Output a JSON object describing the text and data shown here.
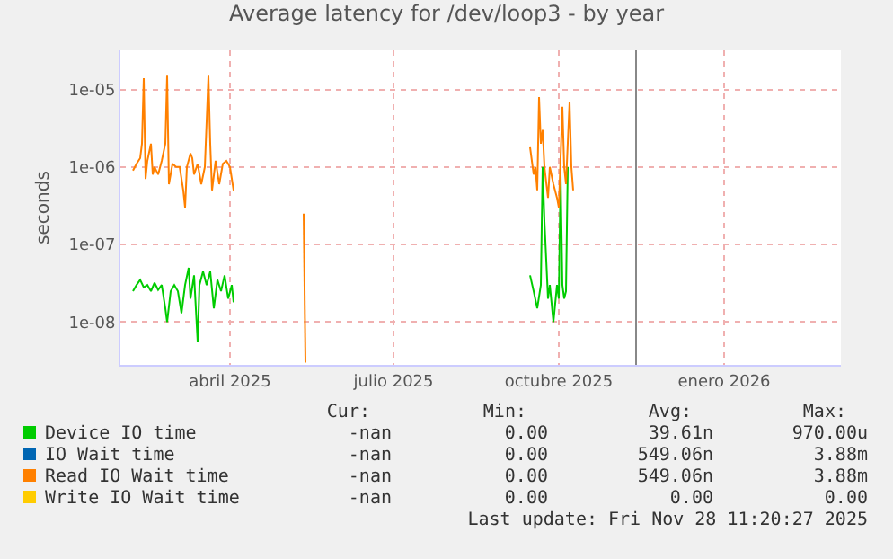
{
  "chart_data": {
    "type": "line",
    "title": "Average latency for /dev/loop3 - by year",
    "ylabel": "seconds",
    "log": true,
    "grid": true,
    "legend": "bottom",
    "marker": "none",
    "line_style": "solid",
    "xlim": [
      "2025-01-30",
      "2026-03-07"
    ],
    "xticks": [
      {
        "value": "2025-04-01",
        "label": "abril 2025"
      },
      {
        "value": "2025-07-01",
        "label": "julio 2025"
      },
      {
        "value": "2025-10-01",
        "label": "octubre 2025"
      },
      {
        "value": "2026-01-01",
        "label": "enero 2026"
      }
    ],
    "ylim": [
      2.8e-09,
      3.2e-05
    ],
    "yticks": [
      {
        "value": 1e-08,
        "label": "1e-08"
      },
      {
        "value": 1e-07,
        "label": "1e-07"
      },
      {
        "value": 1e-06,
        "label": "1e-06"
      },
      {
        "value": 1e-05,
        "label": "1e-05"
      }
    ],
    "ref_lines": [
      {
        "axis": "x",
        "value": "2025-11-13",
        "label": null,
        "color": "#888888"
      }
    ],
    "series": [
      {
        "name": "Device IO time",
        "color": "#00cc00",
        "x": [
          "2025-02-06",
          "2025-02-08",
          "2025-02-10",
          "2025-02-12",
          "2025-02-14",
          "2025-02-16",
          "2025-02-18",
          "2025-02-20",
          "2025-02-22",
          "2025-02-24",
          "2025-02-25",
          "2025-02-27",
          "2025-03-01",
          "2025-03-03",
          "2025-03-05",
          "2025-03-07",
          "2025-03-09",
          "2025-03-10",
          "2025-03-12",
          "2025-03-14",
          "2025-03-15",
          "2025-03-17",
          "2025-03-19",
          "2025-03-21",
          "2025-03-23",
          "2025-03-25",
          "2025-03-27",
          "2025-03-29",
          "2025-03-31",
          "2025-04-02",
          "2025-04-03",
          "2025-04-04",
          "2025-09-15",
          "2025-09-17",
          "2025-09-19",
          "2025-09-21",
          "2025-09-22",
          "2025-09-23",
          "2025-09-25",
          "2025-09-26",
          "2025-09-28",
          "2025-09-30",
          "2025-10-01",
          "2025-10-02",
          "2025-10-03",
          "2025-10-04",
          "2025-10-05",
          "2025-10-06"
        ],
        "values": [
          2.5e-08,
          3e-08,
          3.5e-08,
          2.8e-08,
          3e-08,
          2.5e-08,
          3.2e-08,
          2.6e-08,
          3e-08,
          1.5e-08,
          1e-08,
          2.5e-08,
          3e-08,
          2.5e-08,
          1.3e-08,
          3e-08,
          5e-08,
          2e-08,
          4e-08,
          5.5e-09,
          3e-08,
          4.5e-08,
          3e-08,
          4.5e-08,
          1.5e-08,
          3.5e-08,
          2.5e-08,
          4e-08,
          2e-08,
          3e-08,
          1.8e-08,
          null,
          4e-08,
          2.5e-08,
          1.5e-08,
          3e-08,
          1e-06,
          2e-07,
          2e-08,
          3e-08,
          1e-08,
          3e-08,
          2e-08,
          8e-07,
          3e-08,
          2e-08,
          2.5e-08,
          1e-06
        ]
      },
      {
        "name": "IO Wait time",
        "color": "#0066b3"
      },
      {
        "name": "Read IO Wait time",
        "color": "#ff8000",
        "x": [
          "2025-02-06",
          "2025-02-08",
          "2025-02-10",
          "2025-02-11",
          "2025-02-12",
          "2025-02-13",
          "2025-02-14",
          "2025-02-16",
          "2025-02-17",
          "2025-02-18",
          "2025-02-20",
          "2025-02-22",
          "2025-02-24",
          "2025-02-25",
          "2025-02-26",
          "2025-02-28",
          "2025-03-02",
          "2025-03-04",
          "2025-03-06",
          "2025-03-07",
          "2025-03-08",
          "2025-03-10",
          "2025-03-11",
          "2025-03-12",
          "2025-03-14",
          "2025-03-16",
          "2025-03-18",
          "2025-03-20",
          "2025-03-21",
          "2025-03-22",
          "2025-03-24",
          "2025-03-26",
          "2025-03-28",
          "2025-03-30",
          "2025-04-01",
          "2025-04-03",
          "2025-04-04",
          "2025-05-12",
          "2025-05-13",
          "2025-05-14",
          "2025-09-15",
          "2025-09-17",
          "2025-09-18",
          "2025-09-19",
          "2025-09-20",
          "2025-09-21",
          "2025-09-22",
          "2025-09-23",
          "2025-09-25",
          "2025-09-26",
          "2025-09-28",
          "2025-09-30",
          "2025-10-01",
          "2025-10-03",
          "2025-10-04",
          "2025-10-05",
          "2025-10-07",
          "2025-10-08",
          "2025-10-09"
        ],
        "values": [
          9e-07,
          1.1e-06,
          1.3e-06,
          2e-06,
          1.4e-05,
          7e-07,
          1.2e-06,
          2e-06,
          8e-07,
          1e-06,
          8e-07,
          1.2e-06,
          2e-06,
          1.5e-05,
          6e-07,
          1.1e-06,
          1e-06,
          1e-06,
          5e-07,
          3e-07,
          1e-06,
          1.5e-06,
          1.3e-06,
          8e-07,
          1.1e-06,
          6e-07,
          1e-06,
          1.5e-05,
          2e-06,
          5e-07,
          1.2e-06,
          6e-07,
          1.1e-06,
          1.2e-06,
          1e-06,
          5e-07,
          null,
          2.5e-07,
          3e-09,
          null,
          1.8e-06,
          8e-07,
          1e-06,
          5e-07,
          8e-06,
          2e-06,
          3e-06,
          1e-06,
          4e-07,
          1e-06,
          6e-07,
          4e-07,
          3e-07,
          6e-06,
          1e-06,
          6e-07,
          7e-06,
          1e-06,
          5e-07
        ]
      },
      {
        "name": "Write IO Wait time",
        "color": "#ffcc00"
      }
    ],
    "annotations": [
      "Cur:",
      "Min:",
      "Avg:",
      "Max:",
      "-nan",
      "0.00",
      "39.61n",
      "970.00u",
      "-nan",
      "0.00",
      "549.06n",
      "3.88m",
      "-nan",
      "0.00",
      "549.06n",
      "3.88m",
      "-nan",
      "0.00",
      "0.00",
      "0.00",
      "Last update: Fri Nov 28 11:20:27 2025"
    ]
  }
}
